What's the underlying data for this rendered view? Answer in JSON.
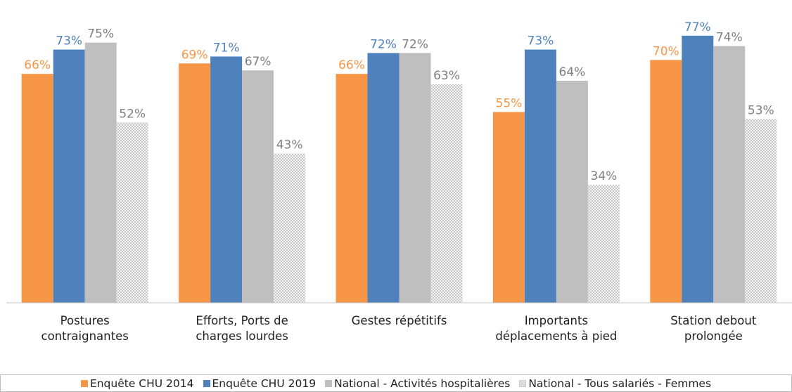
{
  "chart_data": {
    "type": "bar",
    "categories": [
      "Postures contraignantes",
      "Efforts, Ports de charges lourdes",
      "Gestes répétitifs",
      "Importants déplacements à pied",
      "Station debout prolongée"
    ],
    "series": [
      {
        "name": "Enquête CHU 2014",
        "color": "#f79646",
        "label_color": "#f79646",
        "values": [
          66,
          69,
          66,
          55,
          70
        ],
        "value_labels": [
          "66%",
          "69%",
          "66%",
          "55%",
          "70%"
        ]
      },
      {
        "name": "Enquête CHU 2019",
        "color": "#4f81bd",
        "label_color": "#4f81bd",
        "values": [
          73,
          71,
          72,
          73,
          77
        ],
        "value_labels": [
          "73%",
          "71%",
          "72%",
          "73%",
          "77%"
        ]
      },
      {
        "name": "National - Activités hospitalières",
        "color": "#bfbfbf",
        "label_color": "#7f7f7f",
        "values": [
          75,
          67,
          72,
          64,
          74
        ],
        "value_labels": [
          "75%",
          "67%",
          "72%",
          "64%",
          "74%"
        ]
      },
      {
        "name": "National - Tous salariés - Femmes",
        "color": "#bfbfbf",
        "label_color": "#7f7f7f",
        "hatch": true,
        "values": [
          52,
          43,
          63,
          34,
          53
        ],
        "value_labels": [
          "52%",
          "43%",
          "63%",
          "34%",
          "53%"
        ]
      }
    ],
    "ylim": [
      0,
      80
    ],
    "legend": "bottom"
  }
}
